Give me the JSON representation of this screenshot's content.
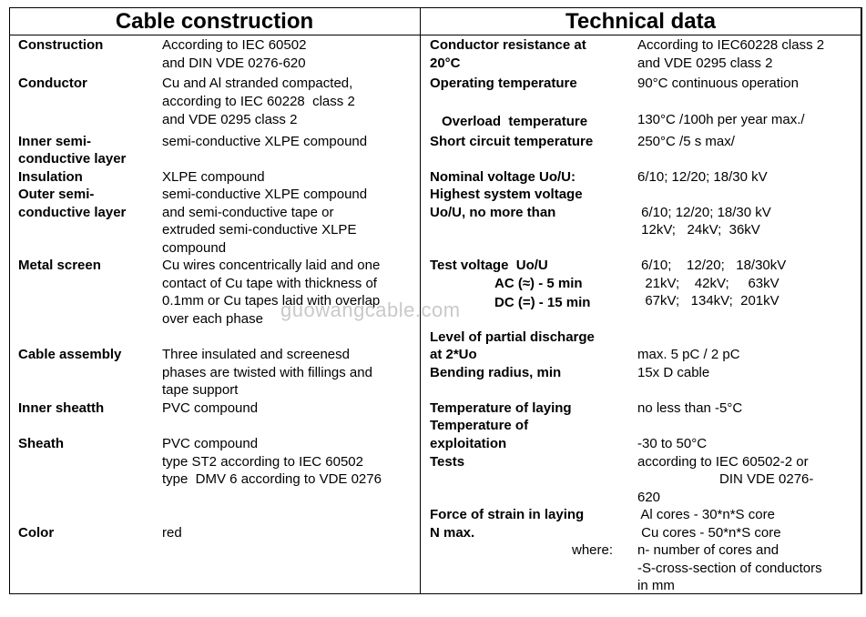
{
  "headers": {
    "left": "Cable construction",
    "right": "Technical data"
  },
  "construction": {
    "construction_label": "Construction",
    "construction_value_1": "According to IEC 60502",
    "construction_value_2": "and DIN VDE 0276-620",
    "conductor_label": "Conductor",
    "conductor_value_1": "Cu and Al stranded compacted,",
    "conductor_value_2": "according to IEC 60228  class 2",
    "conductor_value_3": "and VDE 0295 class 2",
    "inner_semi_label_1": "Inner semi-",
    "inner_semi_label_2": "conductive layer",
    "inner_semi_value": "semi-conductive XLPE compound",
    "insulation_label": "Insulation",
    "insulation_value": "XLPE compound",
    "outer_semi_label_1": "Outer semi-",
    "outer_semi_label_2": "conductive layer",
    "outer_semi_value_1": "semi-conductive XLPE compound",
    "outer_semi_value_2": "and semi-conductive tape or",
    "outer_semi_value_3": "extruded semi-conductive XLPE",
    "outer_semi_value_4": "compound",
    "metal_screen_label": "Metal screen",
    "metal_screen_value_1": "Cu wires concentrically laid and one",
    "metal_screen_value_2": "contact of Cu tape with thickness of",
    "metal_screen_value_3": "0.1mm or Cu tapes laid with overlap",
    "metal_screen_value_4": "over each phase",
    "cable_assembly_label": "Cable assembly",
    "cable_assembly_value_1": "Three insulated and screenesd",
    "cable_assembly_value_2": "phases are twisted with fillings and",
    "cable_assembly_value_3": "tape support",
    "inner_sheath_label": "Inner sheatth",
    "inner_sheath_value": "PVC compound",
    "sheath_label": "Sheath",
    "sheath_value_1": "PVC compound",
    "sheath_value_2": "type ST2 according to IEC 60502",
    "sheath_value_3": "type  DMV 6 according to VDE 0276",
    "color_label": "Color",
    "color_value": "red"
  },
  "technical": {
    "resistance_label_1": "Conductor resistance at",
    "resistance_label_2": "20°C",
    "resistance_value_1": "According to IEC60228 class 2",
    "resistance_value_2": "and VDE 0295 class 2",
    "operating_temp_label": "Operating temperature",
    "operating_temp_value": "90°C continuous operation",
    "overload_label": "Overload  temperature",
    "overload_value": "130°C /100h per year max./",
    "short_circuit_label": "Short circuit temperature",
    "short_circuit_value": "250°C /5 s max/",
    "nominal_voltage_label": "Nominal voltage Uo/U:",
    "nominal_voltage_value": "6/10; 12/20; 18/30 kV",
    "highest_voltage_label_1": "Highest system voltage",
    "highest_voltage_label_2": "Uo/U, no more than",
    "highest_voltage_value_1": " 6/10; 12/20; 18/30 kV",
    "highest_voltage_value_2": " 12kV;   24kV;  36kV",
    "test_voltage_label": "Test voltage  Uo/U",
    "test_voltage_ac_label": "AC (≈) - 5 min",
    "test_voltage_dc_label": "DC (=) - 15 min",
    "test_voltage_value_1": "6/10;    12/20;   18/30kV",
    "test_voltage_value_2": "  21kV;    42kV;     63kV",
    "test_voltage_value_3": "  67kV;   134kV;  201kV",
    "partial_discharge_label_1": "Level of partial discharge",
    "partial_discharge_label_2": "at 2*Uo",
    "partial_discharge_value": "max. 5 pC / 2 pC",
    "bending_label": "Bending radius, min",
    "bending_value": "15x D cable",
    "laying_temp_label": "Temperature of laying",
    "laying_temp_value": "no less than -5°C",
    "exploitation_label_1": "Temperature of",
    "exploitation_label_2": "exploitation",
    "exploitation_value": "-30 to 50°C",
    "tests_label": "Tests",
    "tests_value_1": "according to IEC 60502-2 or",
    "tests_value_2": "DIN VDE 0276-",
    "tests_value_3": "620",
    "strain_label_1": "Force of strain in laying",
    "strain_label_2": "N max.",
    "strain_value_1": " Al cores - 30*n*S core",
    "strain_value_2": " Cu cores - 50*n*S core",
    "where_label": "where:",
    "strain_value_3": "n- number of cores and",
    "strain_value_4": "-S-cross-section of conductors",
    "strain_value_5": "in mm"
  },
  "watermark": "guowangcable.com"
}
